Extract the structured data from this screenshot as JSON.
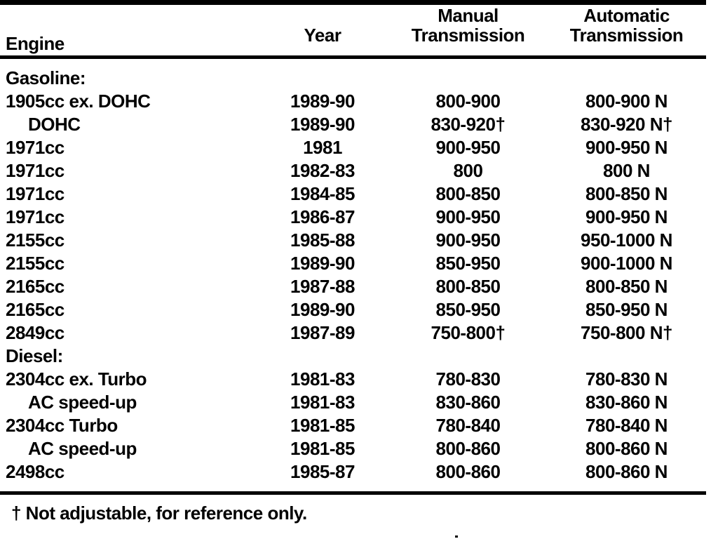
{
  "table": {
    "header": {
      "engine": "Engine",
      "year": "Year",
      "manual_line1": "Manual",
      "manual_line2": "Transmission",
      "automatic_line1": "Automatic",
      "automatic_line2": "Transmission"
    },
    "rows": [
      {
        "engine": "Gasoline:",
        "year": "",
        "manual": "",
        "automatic": "",
        "section": true,
        "indent": false
      },
      {
        "engine": "1905cc ex. DOHC",
        "year": "1989-90",
        "manual": "800-900",
        "automatic": "800-900 N",
        "section": false,
        "indent": false
      },
      {
        "engine": "DOHC",
        "year": "1989-90",
        "manual": "830-920†",
        "automatic": "830-920 N†",
        "section": false,
        "indent": true
      },
      {
        "engine": "1971cc",
        "year": "1981",
        "manual": "900-950",
        "automatic": "900-950 N",
        "section": false,
        "indent": false
      },
      {
        "engine": "1971cc",
        "year": "1982-83",
        "manual": "800",
        "automatic": "800 N",
        "section": false,
        "indent": false
      },
      {
        "engine": "1971cc",
        "year": "1984-85",
        "manual": "800-850",
        "automatic": "800-850 N",
        "section": false,
        "indent": false
      },
      {
        "engine": "1971cc",
        "year": "1986-87",
        "manual": "900-950",
        "automatic": "900-950 N",
        "section": false,
        "indent": false
      },
      {
        "engine": "2155cc",
        "year": "1985-88",
        "manual": "900-950",
        "automatic": "950-1000 N",
        "section": false,
        "indent": false
      },
      {
        "engine": "2155cc",
        "year": "1989-90",
        "manual": "850-950",
        "automatic": "900-1000 N",
        "section": false,
        "indent": false
      },
      {
        "engine": "2165cc",
        "year": "1987-88",
        "manual": "800-850",
        "automatic": "800-850 N",
        "section": false,
        "indent": false
      },
      {
        "engine": "2165cc",
        "year": "1989-90",
        "manual": "850-950",
        "automatic": "850-950 N",
        "section": false,
        "indent": false
      },
      {
        "engine": "2849cc",
        "year": "1987-89",
        "manual": "750-800†",
        "automatic": "750-800 N†",
        "section": false,
        "indent": false
      },
      {
        "engine": "Diesel:",
        "year": "",
        "manual": "",
        "automatic": "",
        "section": true,
        "indent": false
      },
      {
        "engine": "2304cc ex. Turbo",
        "year": "1981-83",
        "manual": "780-830",
        "automatic": "780-830 N",
        "section": false,
        "indent": false
      },
      {
        "engine": "AC speed-up",
        "year": "1981-83",
        "manual": "830-860",
        "automatic": "830-860 N",
        "section": false,
        "indent": true
      },
      {
        "engine": "2304cc Turbo",
        "year": "1981-85",
        "manual": "780-840",
        "automatic": "780-840 N",
        "section": false,
        "indent": false
      },
      {
        "engine": "AC speed-up",
        "year": "1981-85",
        "manual": "800-860",
        "automatic": "800-860 N",
        "section": false,
        "indent": true
      },
      {
        "engine": "2498cc",
        "year": "1985-87",
        "manual": "800-860",
        "automatic": "800-860 N",
        "section": false,
        "indent": false
      }
    ]
  },
  "footnote": "† Not adjustable, for reference only."
}
